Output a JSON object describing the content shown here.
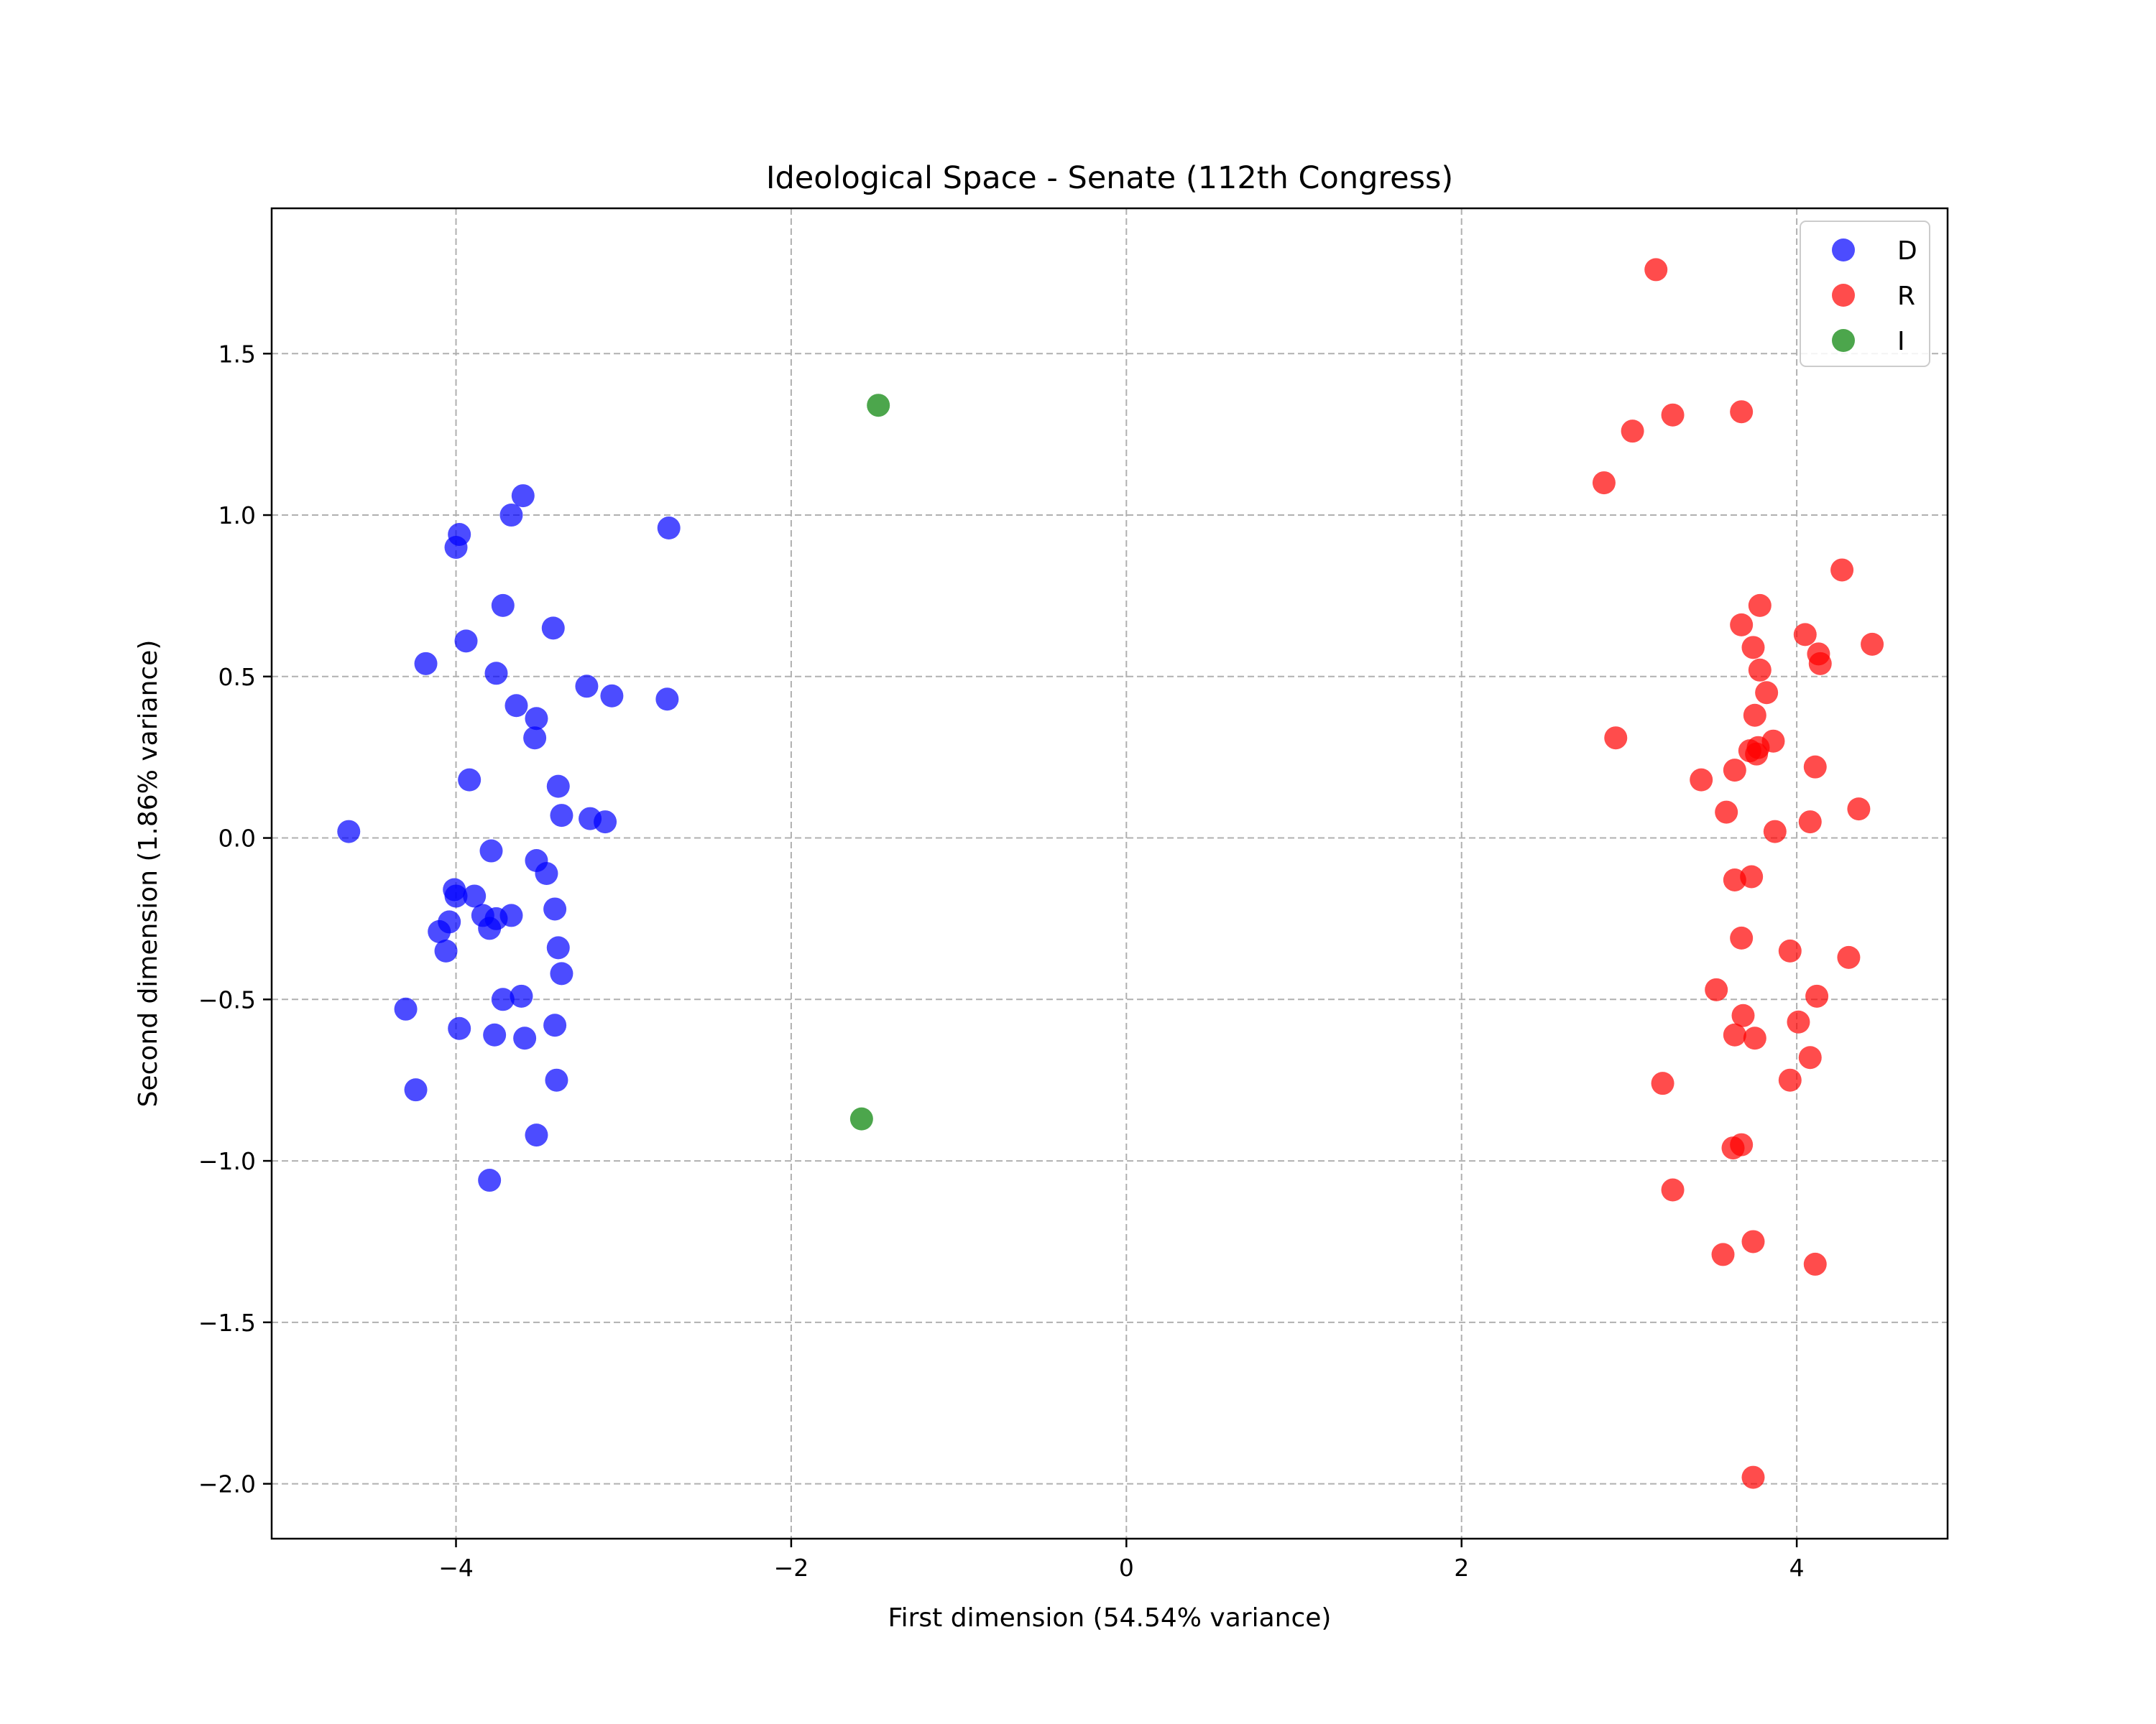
{
  "chart_data": {
    "type": "scatter",
    "title": "Ideological Space - Senate (112th Congress)",
    "xlabel": "First dimension (54.54% variance)",
    "ylabel": "Second dimension (1.86% variance)",
    "xlim": [
      -5.1,
      4.9
    ],
    "ylim": [
      -2.17,
      1.95
    ],
    "xticks": [
      -4,
      -2,
      0,
      2,
      4
    ],
    "xtick_labels": [
      "−4",
      "−2",
      "0",
      "2",
      "4"
    ],
    "yticks": [
      -2.0,
      -1.5,
      -1.0,
      -0.5,
      0.0,
      0.5,
      1.0,
      1.5
    ],
    "ytick_labels": [
      "−2.0",
      "−1.5",
      "−1.0",
      "−0.5",
      "0.0",
      "0.5",
      "1.0",
      "1.5"
    ],
    "grid": true,
    "legend_position": "top-right",
    "series": [
      {
        "name": "D",
        "color": "#0000ff",
        "points": [
          [
            -4.64,
            0.02
          ],
          [
            -3.6,
            1.06
          ],
          [
            -3.98,
            0.94
          ],
          [
            -4.0,
            0.9
          ],
          [
            -3.67,
            1.0
          ],
          [
            -2.73,
            0.96
          ],
          [
            -3.72,
            0.72
          ],
          [
            -3.42,
            0.65
          ],
          [
            -3.94,
            0.61
          ],
          [
            -4.18,
            0.54
          ],
          [
            -3.76,
            0.51
          ],
          [
            -3.22,
            0.47
          ],
          [
            -3.07,
            0.44
          ],
          [
            -2.74,
            0.43
          ],
          [
            -3.64,
            0.41
          ],
          [
            -3.52,
            0.37
          ],
          [
            -3.53,
            0.31
          ],
          [
            -3.92,
            0.18
          ],
          [
            -3.39,
            0.16
          ],
          [
            -3.37,
            0.07
          ],
          [
            -3.2,
            0.06
          ],
          [
            -3.11,
            0.05
          ],
          [
            -3.79,
            -0.04
          ],
          [
            -3.52,
            -0.07
          ],
          [
            -3.46,
            -0.11
          ],
          [
            -4.01,
            -0.16
          ],
          [
            -4.0,
            -0.18
          ],
          [
            -3.89,
            -0.18
          ],
          [
            -4.04,
            -0.26
          ],
          [
            -3.76,
            -0.25
          ],
          [
            -3.84,
            -0.24
          ],
          [
            -3.67,
            -0.24
          ],
          [
            -3.8,
            -0.28
          ],
          [
            -4.1,
            -0.29
          ],
          [
            -3.41,
            -0.22
          ],
          [
            -4.06,
            -0.35
          ],
          [
            -3.39,
            -0.34
          ],
          [
            -3.37,
            -0.42
          ],
          [
            -4.3,
            -0.53
          ],
          [
            -3.72,
            -0.5
          ],
          [
            -3.61,
            -0.49
          ],
          [
            -3.98,
            -0.59
          ],
          [
            -3.77,
            -0.61
          ],
          [
            -3.59,
            -0.62
          ],
          [
            -3.41,
            -0.58
          ],
          [
            -4.24,
            -0.78
          ],
          [
            -3.4,
            -0.75
          ],
          [
            -3.52,
            -0.92
          ],
          [
            -3.8,
            -1.06
          ]
        ]
      },
      {
        "name": "R",
        "color": "#ff0000",
        "points": [
          [
            3.16,
            1.76
          ],
          [
            3.67,
            1.32
          ],
          [
            3.26,
            1.31
          ],
          [
            3.02,
            1.26
          ],
          [
            2.85,
            1.1
          ],
          [
            4.27,
            0.83
          ],
          [
            3.78,
            0.72
          ],
          [
            3.67,
            0.66
          ],
          [
            4.05,
            0.63
          ],
          [
            4.45,
            0.6
          ],
          [
            3.74,
            0.59
          ],
          [
            4.13,
            0.57
          ],
          [
            4.14,
            0.54
          ],
          [
            3.78,
            0.52
          ],
          [
            3.82,
            0.45
          ],
          [
            3.75,
            0.38
          ],
          [
            2.92,
            0.31
          ],
          [
            3.86,
            0.3
          ],
          [
            3.77,
            0.28
          ],
          [
            3.72,
            0.27
          ],
          [
            3.76,
            0.26
          ],
          [
            4.11,
            0.22
          ],
          [
            3.63,
            0.21
          ],
          [
            3.43,
            0.18
          ],
          [
            4.37,
            0.09
          ],
          [
            3.58,
            0.08
          ],
          [
            4.08,
            0.05
          ],
          [
            3.87,
            0.02
          ],
          [
            3.63,
            -0.13
          ],
          [
            3.73,
            -0.12
          ],
          [
            3.67,
            -0.31
          ],
          [
            3.96,
            -0.35
          ],
          [
            4.31,
            -0.37
          ],
          [
            3.52,
            -0.47
          ],
          [
            4.12,
            -0.49
          ],
          [
            3.68,
            -0.55
          ],
          [
            4.01,
            -0.57
          ],
          [
            3.63,
            -0.61
          ],
          [
            3.75,
            -0.62
          ],
          [
            4.08,
            -0.68
          ],
          [
            3.2,
            -0.76
          ],
          [
            3.96,
            -0.75
          ],
          [
            3.62,
            -0.96
          ],
          [
            3.67,
            -0.95
          ],
          [
            3.26,
            -1.09
          ],
          [
            3.56,
            -1.29
          ],
          [
            3.74,
            -1.25
          ],
          [
            4.11,
            -1.32
          ],
          [
            3.74,
            -1.98
          ]
        ]
      },
      {
        "name": "I",
        "color": "#008000",
        "points": [
          [
            -1.48,
            1.34
          ],
          [
            -1.58,
            -0.87
          ]
        ]
      }
    ]
  }
}
